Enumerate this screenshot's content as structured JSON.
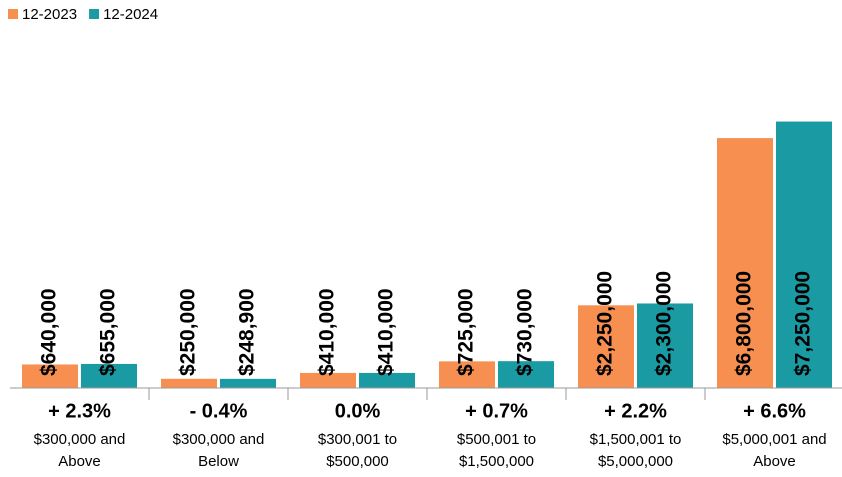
{
  "chart_data": {
    "type": "bar",
    "categories": [
      "$300,000 and Above",
      "$300,000 and Below",
      "$300,001 to $500,000",
      "$500,001 to $1,500,000",
      "$1,500,001 to $5,000,000",
      "$5,000,001 and Above"
    ],
    "series": [
      {
        "name": "12-2023",
        "color": "#f68f50",
        "values": [
          640000,
          250000,
          410000,
          725000,
          2250000,
          6800000
        ],
        "value_labels": [
          "$640,000",
          "$250,000",
          "$410,000",
          "$725,000",
          "$2,250,000",
          "$6,800,000"
        ]
      },
      {
        "name": "12-2024",
        "color": "#1a9ba3",
        "values": [
          655000,
          248900,
          410000,
          730000,
          2300000,
          7250000
        ],
        "value_labels": [
          "$655,000",
          "$248,900",
          "$410,000",
          "$730,000",
          "$2,300,000",
          "$7,250,000"
        ]
      }
    ],
    "annotations": [
      "+ 2.3%",
      "- 0.4%",
      "0.0%",
      "+ 0.7%",
      "+ 2.2%",
      "+ 6.6%"
    ],
    "ylim": [
      0,
      8000000
    ],
    "legend": "top-left"
  }
}
